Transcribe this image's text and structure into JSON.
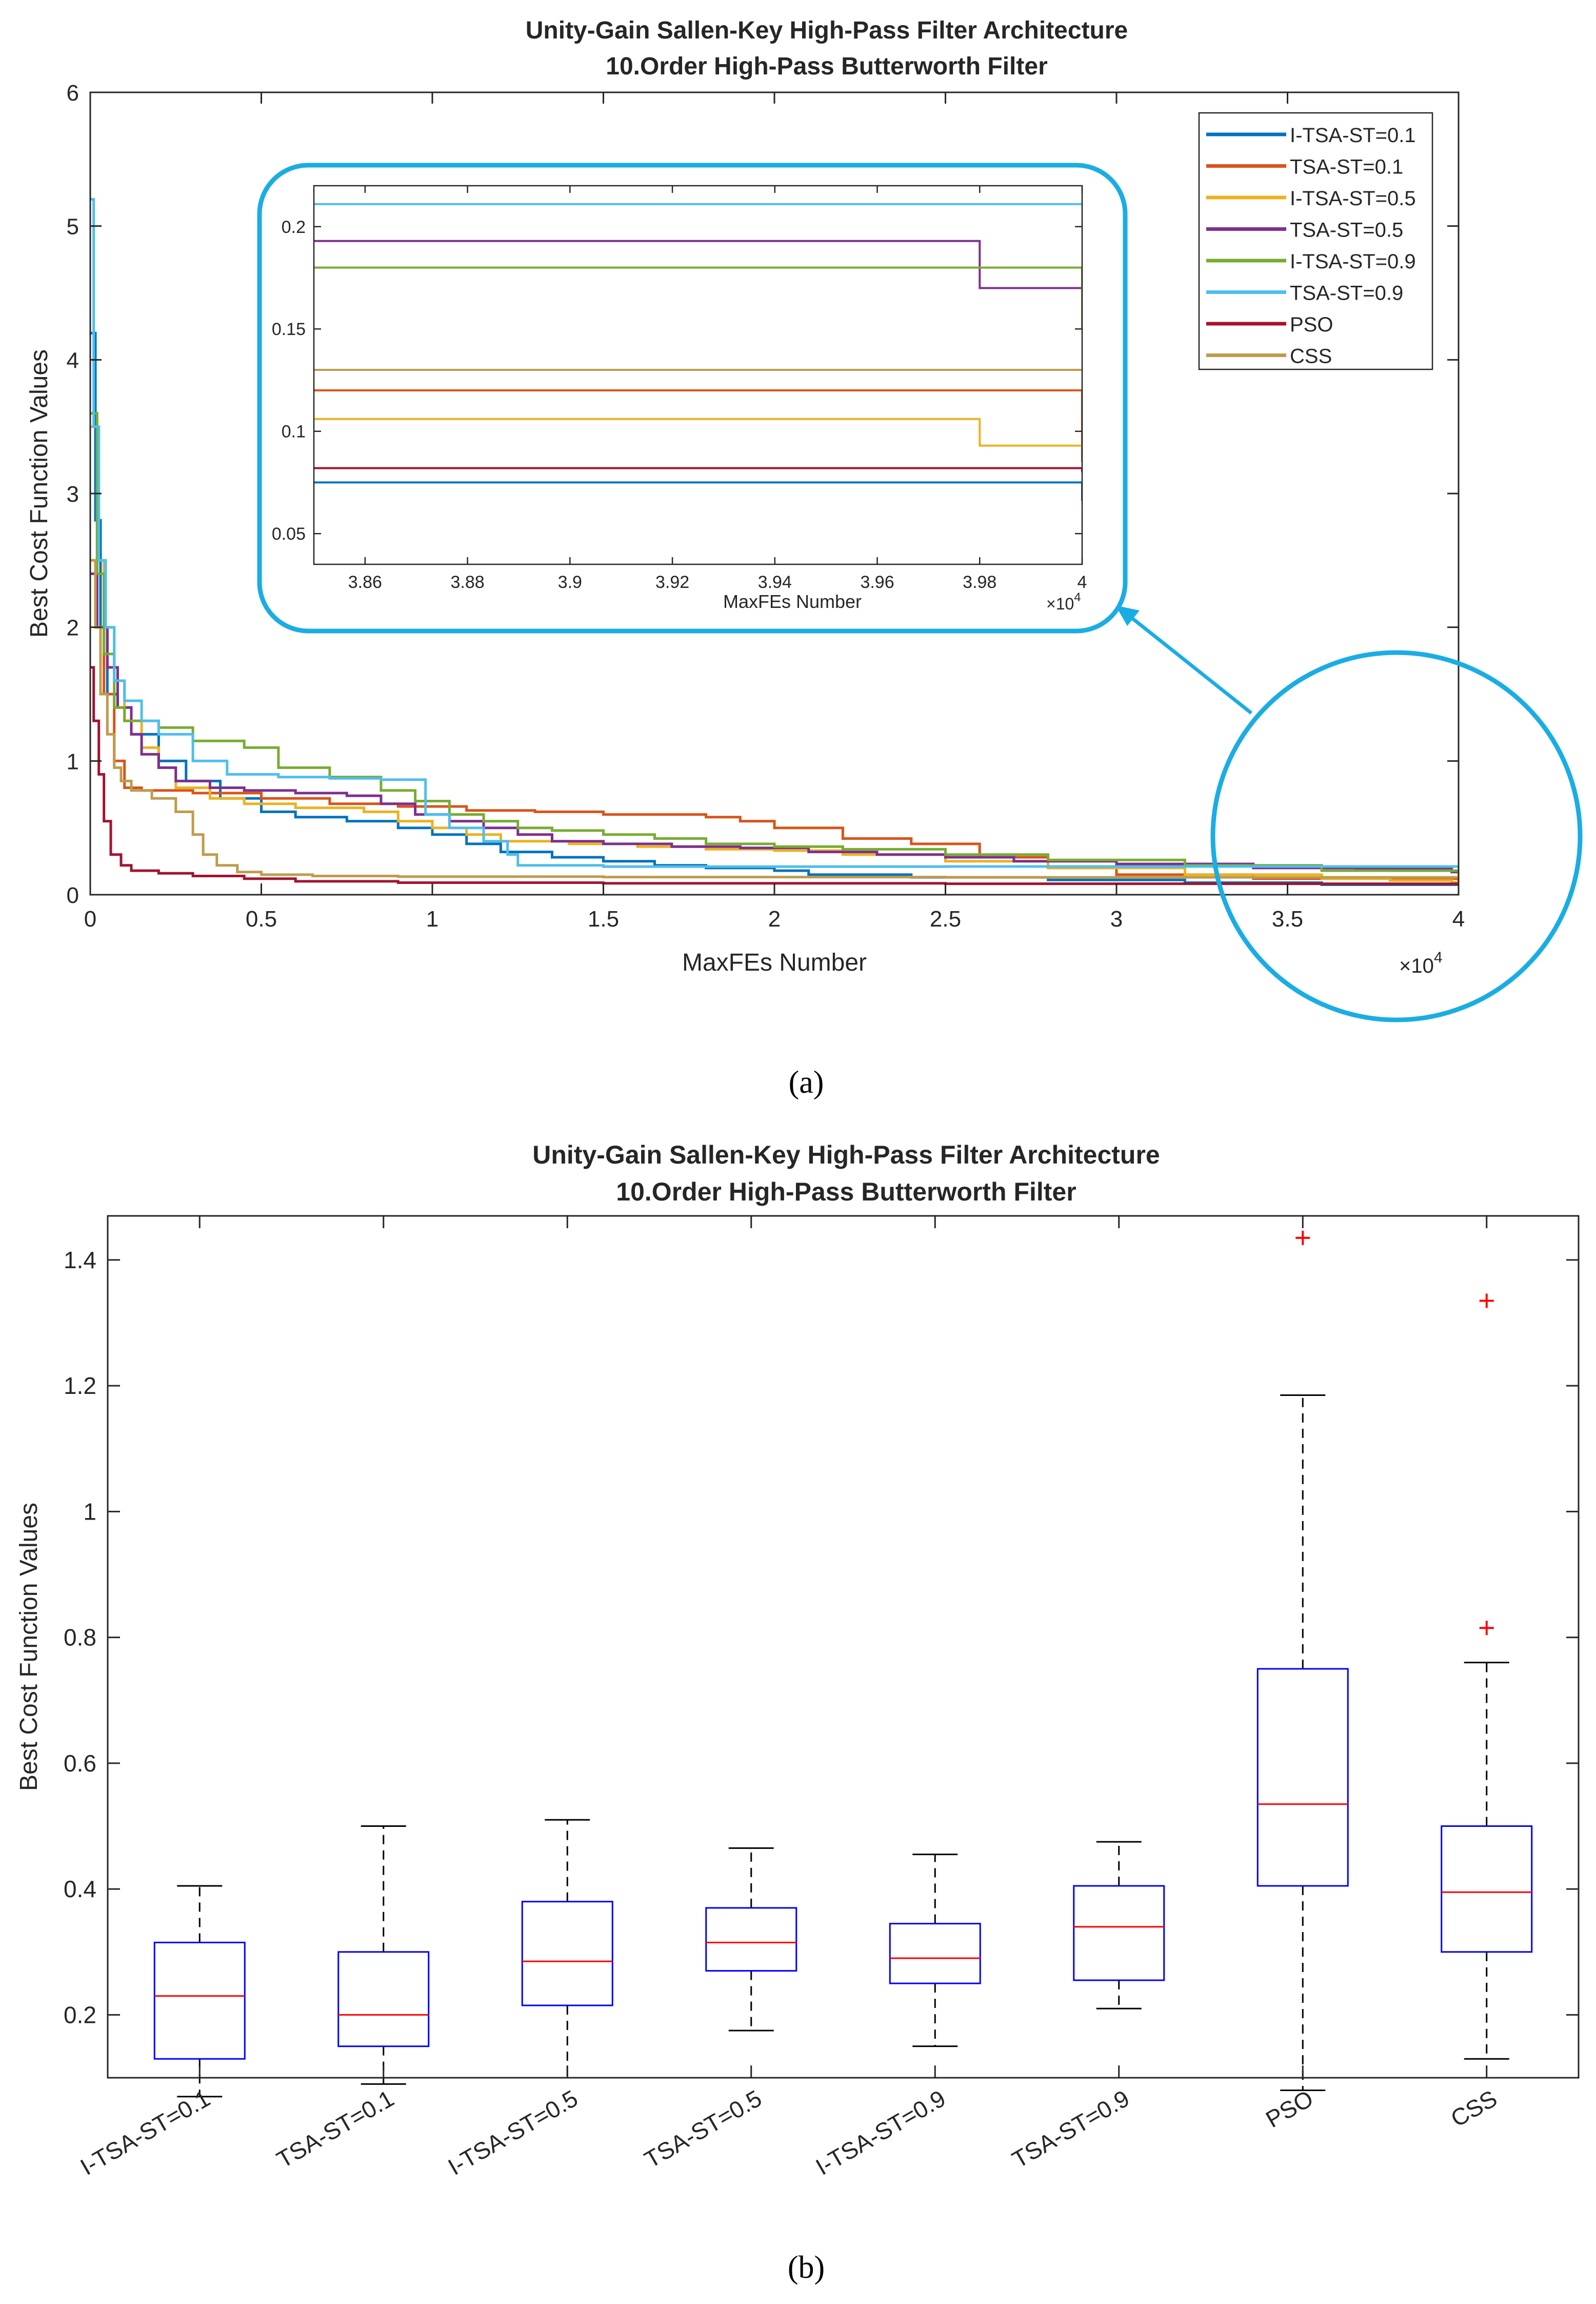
{
  "colors": {
    "I-TSA-ST=0.1": "#0072BD",
    "TSA-ST=0.1": "#D95319",
    "I-TSA-ST=0.5": "#EDB120",
    "TSA-ST=0.5": "#7E2F8E",
    "I-TSA-ST=0.9": "#77AC30",
    "TSA-ST=0.9": "#4DBEEE",
    "PSO": "#A2142F",
    "CSS": "#BF9B4B",
    "highlight": "#1AADE4",
    "box": "#0000FF",
    "median": "#FF0000",
    "outlier": "#FF0000"
  },
  "panel_a": {
    "caption": "(a)",
    "chart_data": {
      "type": "line",
      "title": [
        "Unity-Gain Sallen-Key High-Pass Filter Architecture",
        "10.Order High-Pass Butterworth Filter"
      ],
      "xlabel": "MaxFEs Number",
      "ylabel": "Best Cost Function Values",
      "xlim": [
        0,
        40000
      ],
      "ylim": [
        0,
        6
      ],
      "x_ticks": [
        0,
        5000,
        10000,
        15000,
        20000,
        25000,
        30000,
        35000,
        40000
      ],
      "x_tick_labels": [
        "0",
        "0.5",
        "1",
        "1.5",
        "2",
        "2.5",
        "3",
        "3.5",
        "4"
      ],
      "y_ticks": [
        0,
        1,
        2,
        3,
        4,
        5,
        6
      ],
      "y_tick_labels": [
        "0",
        "1",
        "2",
        "3",
        "4",
        "5",
        "6"
      ],
      "x_exponent": {
        "base": "×10",
        "power": "4"
      },
      "legend_position": "top-right",
      "series": [
        {
          "name": "I-TSA-ST=0.1",
          "points": [
            [
              0,
              4.2
            ],
            [
              150,
              2.8
            ],
            [
              300,
              2.0
            ],
            [
              500,
              1.5
            ],
            [
              800,
              1.4
            ],
            [
              1200,
              1.2
            ],
            [
              2000,
              1.0
            ],
            [
              2800,
              0.85
            ],
            [
              3800,
              0.72
            ],
            [
              5000,
              0.62
            ],
            [
              6000,
              0.58
            ],
            [
              7500,
              0.55
            ],
            [
              9000,
              0.5
            ],
            [
              10000,
              0.45
            ],
            [
              11000,
              0.38
            ],
            [
              12000,
              0.32
            ],
            [
              13500,
              0.28
            ],
            [
              15000,
              0.25
            ],
            [
              16500,
              0.22
            ],
            [
              18000,
              0.2
            ],
            [
              20000,
              0.18
            ],
            [
              21000,
              0.15
            ],
            [
              24000,
              0.13
            ],
            [
              28000,
              0.11
            ],
            [
              32000,
              0.09
            ],
            [
              36000,
              0.075
            ],
            [
              40000,
              0.066
            ]
          ]
        },
        {
          "name": "TSA-ST=0.1",
          "points": [
            [
              0,
              2.5
            ],
            [
              200,
              2.0
            ],
            [
              400,
              1.5
            ],
            [
              700,
              1.0
            ],
            [
              1000,
              0.8
            ],
            [
              1500,
              0.78
            ],
            [
              3000,
              0.76
            ],
            [
              5000,
              0.72
            ],
            [
              7000,
              0.68
            ],
            [
              9000,
              0.66
            ],
            [
              11000,
              0.63
            ],
            [
              13000,
              0.62
            ],
            [
              15000,
              0.6
            ],
            [
              18000,
              0.58
            ],
            [
              19000,
              0.55
            ],
            [
              20000,
              0.5
            ],
            [
              22000,
              0.42
            ],
            [
              24000,
              0.38
            ],
            [
              26000,
              0.28
            ],
            [
              28000,
              0.2
            ],
            [
              30000,
              0.15
            ],
            [
              34000,
              0.12
            ],
            [
              40000,
              0.085
            ]
          ]
        },
        {
          "name": "I-TSA-ST=0.5",
          "points": [
            [
              0,
              3.5
            ],
            [
              200,
              2.5
            ],
            [
              400,
              2.0
            ],
            [
              700,
              1.6
            ],
            [
              1000,
              1.3
            ],
            [
              1500,
              1.1
            ],
            [
              2000,
              0.95
            ],
            [
              2500,
              0.8
            ],
            [
              3500,
              0.72
            ],
            [
              4500,
              0.68
            ],
            [
              6000,
              0.65
            ],
            [
              8000,
              0.62
            ],
            [
              9000,
              0.55
            ],
            [
              10000,
              0.5
            ],
            [
              11000,
              0.45
            ],
            [
              12000,
              0.4
            ],
            [
              14000,
              0.38
            ],
            [
              16000,
              0.36
            ],
            [
              18000,
              0.34
            ],
            [
              20000,
              0.33
            ],
            [
              22000,
              0.3
            ],
            [
              25000,
              0.25
            ],
            [
              28000,
              0.2
            ],
            [
              32000,
              0.15
            ],
            [
              36000,
              0.12
            ],
            [
              38000,
              0.106
            ],
            [
              39600,
              0.106
            ],
            [
              39800,
              0.093
            ],
            [
              40000,
              0.093
            ]
          ]
        },
        {
          "name": "TSA-ST=0.5",
          "points": [
            [
              0,
              2.4
            ],
            [
              200,
              2.0
            ],
            [
              500,
              1.7
            ],
            [
              800,
              1.4
            ],
            [
              1200,
              1.2
            ],
            [
              1500,
              1.05
            ],
            [
              2000,
              0.95
            ],
            [
              2500,
              0.85
            ],
            [
              3500,
              0.8
            ],
            [
              4500,
              0.78
            ],
            [
              6000,
              0.76
            ],
            [
              7500,
              0.74
            ],
            [
              8500,
              0.68
            ],
            [
              9500,
              0.6
            ],
            [
              10500,
              0.55
            ],
            [
              11500,
              0.5
            ],
            [
              12500,
              0.45
            ],
            [
              13500,
              0.4
            ],
            [
              15000,
              0.38
            ],
            [
              17000,
              0.36
            ],
            [
              19000,
              0.35
            ],
            [
              21000,
              0.32
            ],
            [
              23000,
              0.3
            ],
            [
              25000,
              0.28
            ],
            [
              27000,
              0.25
            ],
            [
              30000,
              0.23
            ],
            [
              34000,
              0.2
            ],
            [
              37000,
              0.193
            ],
            [
              39750,
              0.193
            ],
            [
              39800,
              0.17
            ],
            [
              40000,
              0.17
            ]
          ]
        },
        {
          "name": "I-TSA-ST=0.9",
          "points": [
            [
              0,
              3.6
            ],
            [
              200,
              2.4
            ],
            [
              400,
              1.8
            ],
            [
              700,
              1.4
            ],
            [
              1000,
              1.3
            ],
            [
              2000,
              1.25
            ],
            [
              3000,
              1.15
            ],
            [
              4500,
              1.1
            ],
            [
              5500,
              0.95
            ],
            [
              7000,
              0.88
            ],
            [
              8500,
              0.78
            ],
            [
              9500,
              0.7
            ],
            [
              10500,
              0.6
            ],
            [
              11500,
              0.55
            ],
            [
              12500,
              0.5
            ],
            [
              13500,
              0.48
            ],
            [
              15000,
              0.45
            ],
            [
              16500,
              0.42
            ],
            [
              18000,
              0.38
            ],
            [
              20000,
              0.36
            ],
            [
              22000,
              0.34
            ],
            [
              25000,
              0.3
            ],
            [
              28000,
              0.26
            ],
            [
              32000,
              0.22
            ],
            [
              36000,
              0.18
            ],
            [
              40000,
              0.15
            ]
          ]
        },
        {
          "name": "TSA-ST=0.9",
          "points": [
            [
              0,
              5.2
            ],
            [
              100,
              3.5
            ],
            [
              250,
              2.5
            ],
            [
              450,
              2.0
            ],
            [
              700,
              1.6
            ],
            [
              1000,
              1.45
            ],
            [
              1500,
              1.3
            ],
            [
              2000,
              1.2
            ],
            [
              3000,
              1.0
            ],
            [
              4000,
              0.9
            ],
            [
              5500,
              0.88
            ],
            [
              7000,
              0.87
            ],
            [
              8500,
              0.86
            ],
            [
              9500,
              0.86
            ],
            [
              9800,
              0.6
            ],
            [
              10500,
              0.5
            ],
            [
              11500,
              0.4
            ],
            [
              12200,
              0.3
            ],
            [
              12500,
              0.22
            ],
            [
              15000,
              0.21
            ],
            [
              20000,
              0.21
            ],
            [
              25000,
              0.211
            ],
            [
              30000,
              0.211
            ],
            [
              35000,
              0.211
            ],
            [
              40000,
              0.211
            ]
          ]
        },
        {
          "name": "PSO",
          "points": [
            [
              0,
              1.7
            ],
            [
              100,
              1.3
            ],
            [
              250,
              0.9
            ],
            [
              400,
              0.55
            ],
            [
              600,
              0.3
            ],
            [
              900,
              0.22
            ],
            [
              1200,
              0.18
            ],
            [
              2000,
              0.16
            ],
            [
              3000,
              0.14
            ],
            [
              4500,
              0.12
            ],
            [
              6000,
              0.1
            ],
            [
              9000,
              0.09
            ],
            [
              15000,
              0.085
            ],
            [
              25000,
              0.082
            ],
            [
              40000,
              0.08
            ]
          ]
        },
        {
          "name": "CSS",
          "points": [
            [
              0,
              2.5
            ],
            [
              150,
              2.0
            ],
            [
              300,
              1.5
            ],
            [
              500,
              1.2
            ],
            [
              700,
              0.95
            ],
            [
              900,
              0.85
            ],
            [
              1200,
              0.78
            ],
            [
              1800,
              0.72
            ],
            [
              2500,
              0.62
            ],
            [
              3000,
              0.45
            ],
            [
              3300,
              0.3
            ],
            [
              3700,
              0.22
            ],
            [
              4300,
              0.17
            ],
            [
              5000,
              0.15
            ],
            [
              6500,
              0.14
            ],
            [
              9000,
              0.135
            ],
            [
              15000,
              0.132
            ],
            [
              25000,
              0.13
            ],
            [
              40000,
              0.13
            ]
          ]
        }
      ]
    },
    "inset": {
      "xlabel": "MaxFEs Number",
      "xlim": [
        38500,
        40000
      ],
      "ylim": [
        0.035,
        0.22
      ],
      "x_ticks": [
        38600,
        38800,
        39000,
        39200,
        39400,
        39600,
        39800,
        40000
      ],
      "x_tick_labels": [
        "3.86",
        "3.88",
        "3.9",
        "3.92",
        "3.94",
        "3.96",
        "3.98",
        "4"
      ],
      "y_ticks": [
        0.05,
        0.1,
        0.15,
        0.2
      ],
      "y_tick_labels": [
        "0.05",
        "0.1",
        "0.15",
        "0.2"
      ],
      "x_exponent": {
        "base": "×10",
        "power": "4"
      }
    }
  },
  "panel_b": {
    "caption": "(b)",
    "chart_data": {
      "type": "box",
      "title": [
        "Unity-Gain Sallen-Key High-Pass Filter Architecture",
        "10.Order High-Pass Butterworth Filter"
      ],
      "ylabel": "Best Cost Function Values",
      "ylim": [
        0.1,
        1.47
      ],
      "y_ticks": [
        0.2,
        0.4,
        0.6,
        0.8,
        1.0,
        1.2,
        1.4
      ],
      "y_tick_labels": [
        "0.2",
        "0.4",
        "0.6",
        "0.8",
        "1",
        "1.2",
        "1.4"
      ],
      "categories": [
        "I-TSA-ST=0.1",
        "TSA-ST=0.1",
        "I-TSA-ST=0.5",
        "TSA-ST=0.5",
        "I-TSA-ST=0.9",
        "TSA-ST=0.9",
        "PSO",
        "CSS"
      ],
      "boxes": [
        {
          "min": 0.07,
          "q1": 0.13,
          "median": 0.23,
          "q3": 0.315,
          "max": 0.405,
          "outliers": []
        },
        {
          "min": 0.09,
          "q1": 0.15,
          "median": 0.2,
          "q3": 0.3,
          "max": 0.5,
          "outliers": []
        },
        {
          "min": 0.1,
          "q1": 0.215,
          "median": 0.285,
          "q3": 0.38,
          "max": 0.51,
          "outliers": []
        },
        {
          "min": 0.175,
          "q1": 0.27,
          "median": 0.315,
          "q3": 0.37,
          "max": 0.465,
          "outliers": []
        },
        {
          "min": 0.15,
          "q1": 0.25,
          "median": 0.29,
          "q3": 0.345,
          "max": 0.455,
          "outliers": []
        },
        {
          "min": 0.21,
          "q1": 0.255,
          "median": 0.34,
          "q3": 0.405,
          "max": 0.475,
          "outliers": []
        },
        {
          "min": 0.08,
          "q1": 0.405,
          "median": 0.535,
          "q3": 0.75,
          "max": 1.185,
          "outliers": [
            1.435
          ]
        },
        {
          "min": 0.13,
          "q1": 0.3,
          "median": 0.395,
          "q3": 0.5,
          "max": 0.76,
          "outliers": [
            0.815,
            1.335
          ]
        }
      ]
    }
  }
}
